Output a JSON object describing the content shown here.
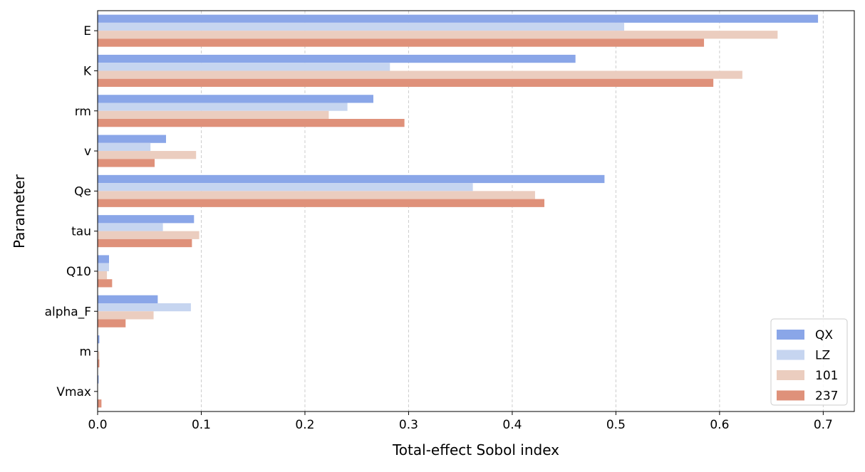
{
  "chart_data": {
    "type": "bar",
    "orientation": "horizontal",
    "xlabel": "Total-effect Sobol index",
    "ylabel": "Parameter",
    "xlim": [
      0,
      0.73
    ],
    "xticks": [
      "0.0",
      "0.1",
      "0.2",
      "0.3",
      "0.4",
      "0.5",
      "0.6",
      "0.7"
    ],
    "grid": "x dashed",
    "legend_placement": "bottom-right",
    "categories": [
      "E",
      "K",
      "rm",
      "v",
      "Qe",
      "tau",
      "Q10",
      "alpha_F",
      "m",
      "Vmax"
    ],
    "series": [
      {
        "name": "QX",
        "color": "#8aa6e8",
        "values": [
          0.695,
          0.461,
          0.266,
          0.066,
          0.489,
          0.093,
          0.011,
          0.058,
          0.0017,
          0.001
        ]
      },
      {
        "name": "LZ",
        "color": "#c6d5f0",
        "values": [
          0.508,
          0.282,
          0.241,
          0.051,
          0.362,
          0.063,
          0.011,
          0.09,
          0.0005,
          0.0
        ]
      },
      {
        "name": "101",
        "color": "#ebcdbf",
        "values": [
          0.656,
          0.622,
          0.223,
          0.095,
          0.422,
          0.098,
          0.009,
          0.054,
          0.0017,
          0.0003
        ]
      },
      {
        "name": "237",
        "color": "#df917a",
        "values": [
          0.585,
          0.594,
          0.296,
          0.055,
          0.431,
          0.091,
          0.014,
          0.027,
          0.0017,
          0.0037
        ]
      }
    ]
  }
}
